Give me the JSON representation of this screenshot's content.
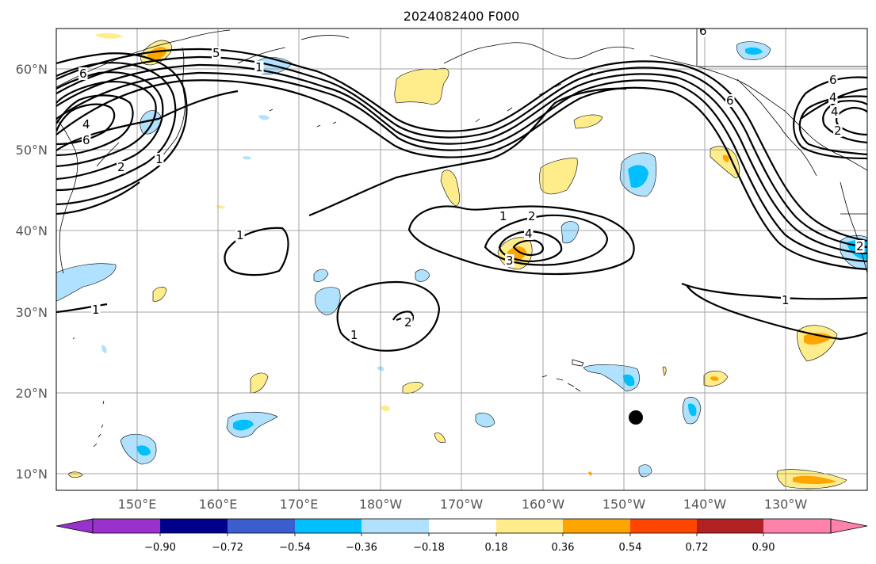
{
  "title": "2024082400 F000",
  "lat_labels": [
    "10°N",
    "20°N",
    "30°N",
    "40°N",
    "50°N",
    "60°N"
  ],
  "lon_labels": [
    "150°E",
    "160°E",
    "170°E",
    "180°W",
    "170°W",
    "160°W",
    "150°W",
    "140°W",
    "130°W"
  ],
  "colorbar": {
    "colors": [
      "#9932CC",
      "#00008B",
      "#3A5FCD",
      "#00BFFF",
      "#B0E2FF",
      "#FFFFFF",
      "#FFEC8B",
      "#FFA500",
      "#FF4500",
      "#B22222",
      "#FF82AB"
    ],
    "tick_labels": [
      "−0.90",
      "−0.72",
      "−0.54",
      "−0.36",
      "−0.18",
      "0.18",
      "0.36",
      "0.54",
      "0.72",
      "0.90"
    ]
  },
  "contour_labels": [
    "6",
    "4",
    "6",
    "5",
    "1",
    "2",
    "6",
    "4",
    "1",
    "1",
    "2",
    "4",
    "3",
    "1",
    "1",
    "2",
    "6",
    "4",
    "2",
    "2",
    "1",
    "1",
    "6"
  ],
  "marker": {
    "name": "black-dot",
    "lat": 17,
    "lon": -148
  }
}
